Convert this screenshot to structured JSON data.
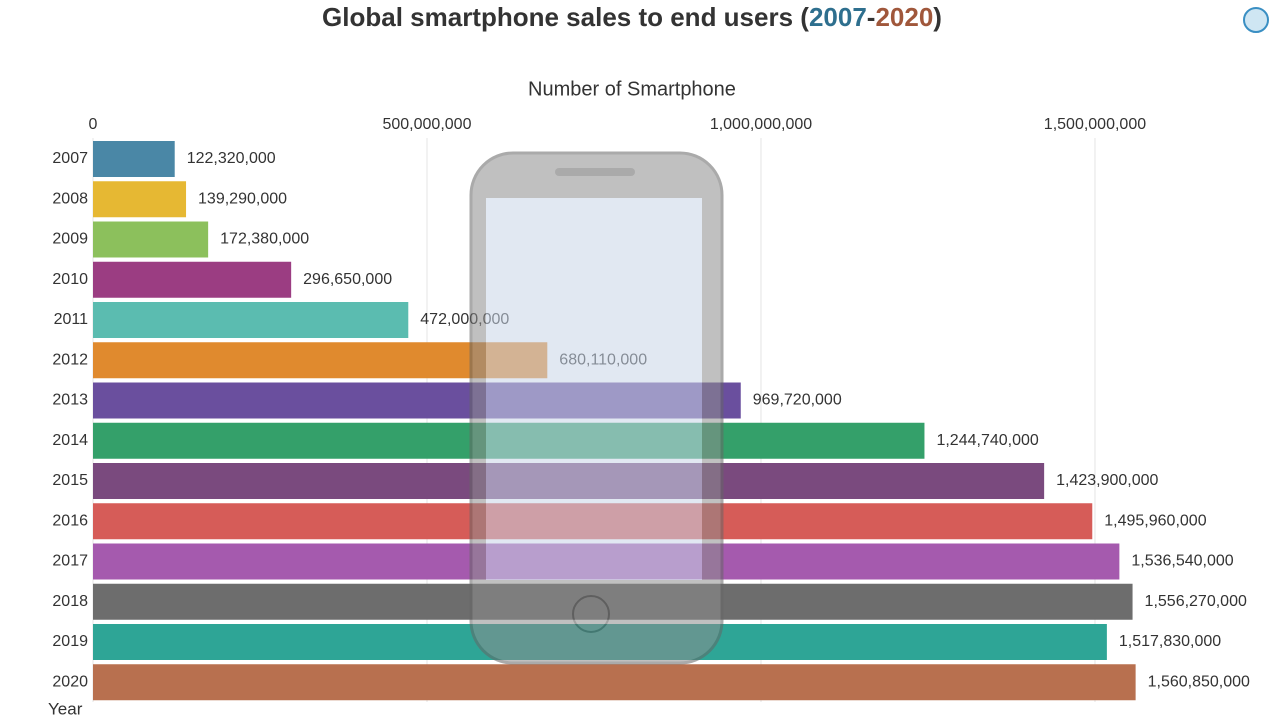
{
  "chart_data": {
    "type": "bar",
    "orientation": "horizontal",
    "title_parts": [
      "Global smartphone sales to end users (",
      "2007",
      "-",
      "2020",
      ")"
    ],
    "x_label": "Number of Smartphone",
    "y_label": "Year",
    "categories": [
      "2007",
      "2008",
      "2009",
      "2010",
      "2011",
      "2012",
      "2013",
      "2014",
      "2015",
      "2016",
      "2017",
      "2018",
      "2019",
      "2020"
    ],
    "values": [
      122320000,
      139290000,
      172380000,
      296650000,
      472000000,
      680110000,
      969720000,
      1244740000,
      1423900000,
      1495960000,
      1536540000,
      1556270000,
      1517830000,
      1560850000
    ],
    "value_labels": [
      "122,320,000",
      "139,290,000",
      "172,380,000",
      "296,650,000",
      "472,000,000",
      "680,110,000",
      "969,720,000",
      "1,244,740,000",
      "1,423,900,000",
      "1,495,960,000",
      "1,536,540,000",
      "1,556,270,000",
      "1,517,830,000",
      "1,560,850,000"
    ],
    "colors": [
      "#4a87a6",
      "#e6b833",
      "#8cc05c",
      "#9b3d82",
      "#5bbcb0",
      "#e08a2e",
      "#6a4f9e",
      "#34a06a",
      "#7a4a7e",
      "#d65c58",
      "#a55aae",
      "#6d6d6d",
      "#2ea596",
      "#b8704f"
    ],
    "xlim": [
      0,
      1777000000
    ],
    "xticks": [
      0,
      {
        "value": 500000000,
        "label": "500,000,000"
      },
      {
        "value": 1000000000,
        "label": "1,000,000,000"
      },
      {
        "value": 1500000000,
        "label": "1,500,000,000"
      }
    ],
    "grid": true
  }
}
